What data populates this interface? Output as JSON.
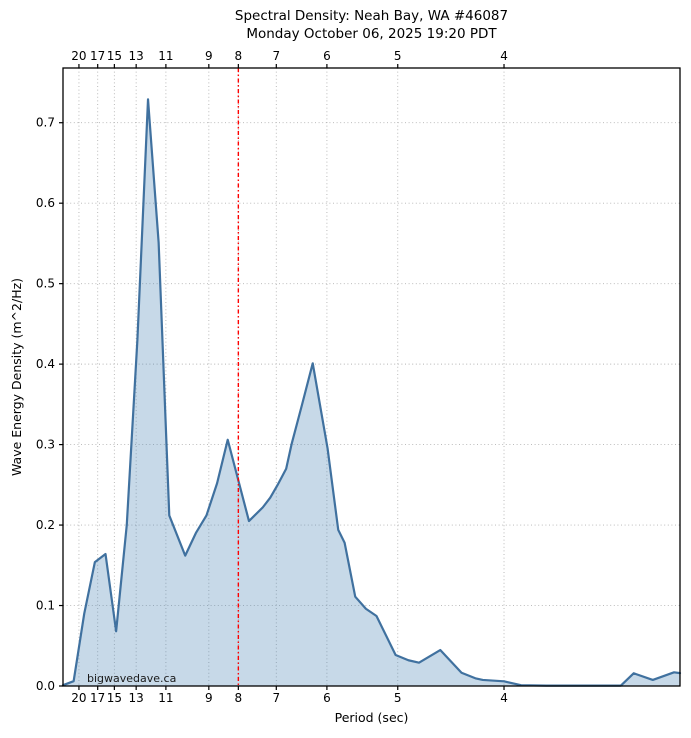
{
  "watermark": "bigwavedave.ca",
  "chart_data": {
    "type": "area",
    "title": "Spectral Density: Neah Bay, WA #46087",
    "subtitle": "Monday October 06, 2025 19:20 PDT",
    "xlabel": "Period (sec)",
    "ylabel": "Wave Energy Density (m^2/Hz)",
    "x_axis_kind": "linear in frequency (Hz), labeled by period (sec) on top and bottom",
    "xlim_frequency_hz": [
      0.0425,
      0.3328
    ],
    "ylim": [
      0,
      0.768
    ],
    "period_tick_labels_sec": [
      20,
      17,
      15,
      13,
      11,
      9,
      8,
      7,
      6,
      5,
      4
    ],
    "y_ticks": [
      0.0,
      0.1,
      0.2,
      0.3,
      0.4,
      0.5,
      0.6,
      0.7
    ],
    "grid": true,
    "legend": "none",
    "marker_line": {
      "period_sec": 8,
      "frequency_hz": 0.125,
      "style": "dash-dot",
      "color": "#ff0000"
    },
    "series": [
      {
        "name": "wave energy density",
        "x_frequency_hz_y_m2_per_hz_points": [
          [
            0.0425,
            0.001
          ],
          [
            0.0475,
            0.006
          ],
          [
            0.0525,
            0.09
          ],
          [
            0.0575,
            0.154
          ],
          [
            0.0625,
            0.164
          ],
          [
            0.0675,
            0.068
          ],
          [
            0.0725,
            0.2
          ],
          [
            0.0775,
            0.43
          ],
          [
            0.0825,
            0.729
          ],
          [
            0.0875,
            0.551
          ],
          [
            0.0925,
            0.212
          ],
          [
            0.1,
            0.162
          ],
          [
            0.105,
            0.19
          ],
          [
            0.11,
            0.212
          ],
          [
            0.115,
            0.252
          ],
          [
            0.12,
            0.306
          ],
          [
            0.13,
            0.205
          ],
          [
            0.1365,
            0.222
          ],
          [
            0.14,
            0.234
          ],
          [
            0.1435,
            0.25
          ],
          [
            0.1475,
            0.27
          ],
          [
            0.15,
            0.3
          ],
          [
            0.155,
            0.35
          ],
          [
            0.16,
            0.401
          ],
          [
            0.167,
            0.295
          ],
          [
            0.172,
            0.194
          ],
          [
            0.175,
            0.178
          ],
          [
            0.18,
            0.111
          ],
          [
            0.185,
            0.096
          ],
          [
            0.19,
            0.087
          ],
          [
            0.199,
            0.0385
          ],
          [
            0.205,
            0.032
          ],
          [
            0.21,
            0.029
          ],
          [
            0.22,
            0.0447
          ],
          [
            0.23,
            0.0165
          ],
          [
            0.2365,
            0.0096
          ],
          [
            0.24,
            0.0075
          ],
          [
            0.25,
            0.0058
          ],
          [
            0.258,
            0.001
          ],
          [
            0.27,
            0.0005
          ],
          [
            0.285,
            0.0005
          ],
          [
            0.305,
            0.0005
          ],
          [
            0.311,
            0.0158
          ],
          [
            0.32,
            0.0075
          ],
          [
            0.33,
            0.017
          ],
          [
            0.3328,
            0.016
          ]
        ]
      }
    ],
    "colors": {
      "line": "#40719f",
      "fill": "rgba(70,130,180,0.30)",
      "grid": "#b3b3b3",
      "frame": "#000000",
      "marker_line": "#ff0000",
      "watermark_text": "#1a1a1a"
    }
  }
}
